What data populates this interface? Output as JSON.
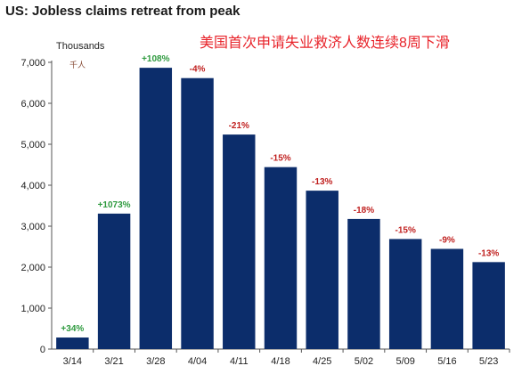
{
  "chart_data": {
    "type": "bar",
    "title": "US: Jobless claims retreat from peak",
    "subtitle": "美国首次申请失业救济人数连续8周下滑",
    "ylabel": "Thousands",
    "ylabel_cn": "千人",
    "ylim": [
      0,
      7000
    ],
    "yticks": [
      0,
      1000,
      2000,
      3000,
      4000,
      5000,
      6000,
      7000
    ],
    "ytick_labels": [
      "0",
      "1,000",
      "2,000",
      "3,000",
      "4,000",
      "5,000",
      "6,000",
      "7,000"
    ],
    "categories": [
      "3/14",
      "3/21",
      "3/28",
      "4/04",
      "4/11",
      "4/18",
      "4/25",
      "5/02",
      "5/09",
      "5/16",
      "5/23"
    ],
    "values": [
      282,
      3307,
      6867,
      6615,
      5237,
      4442,
      3867,
      3176,
      2687,
      2446,
      2123
    ],
    "labels": [
      "+34%",
      "+1073%",
      "+108%",
      "-4%",
      "-21%",
      "-15%",
      "-13%",
      "-18%",
      "-15%",
      "-9%",
      "-13%"
    ],
    "bar_color": "#0c2d6b",
    "positive_label_color": "#2e9a3e",
    "negative_label_color": "#c0201f",
    "grid": false
  }
}
